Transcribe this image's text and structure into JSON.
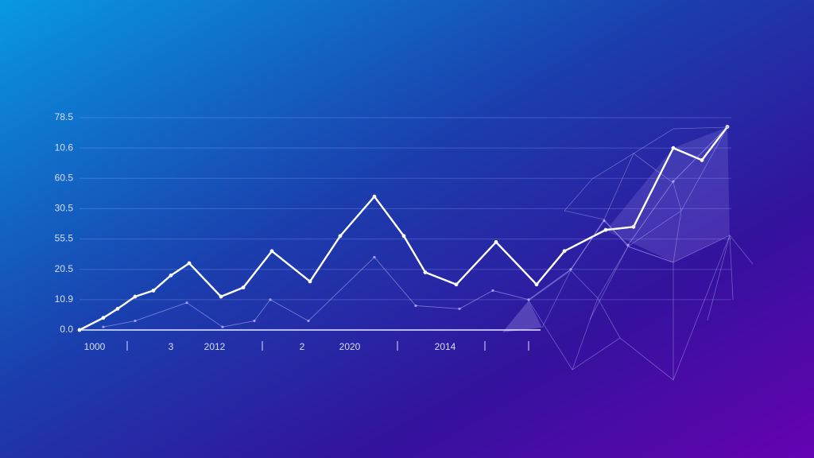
{
  "chart_data": {
    "type": "line",
    "grid": true,
    "ylim": [
      0,
      7
    ],
    "yticks": [
      {
        "value": 0,
        "label": "0.0"
      },
      {
        "value": 1,
        "label": "10.9"
      },
      {
        "value": 2,
        "label": "20.5"
      },
      {
        "value": 3,
        "label": "55.5"
      },
      {
        "value": 4,
        "label": "30.5"
      },
      {
        "value": 5,
        "label": "60.5"
      },
      {
        "value": 6,
        "label": "10.6"
      },
      {
        "value": 7,
        "label": "78.5"
      }
    ],
    "xlim": [
      0,
      82
    ],
    "xticks": [
      {
        "value": 1.9,
        "label": "1000"
      },
      {
        "value": 11.5,
        "label": "3"
      },
      {
        "value": 17,
        "label": "2012"
      },
      {
        "value": 28,
        "label": "2"
      },
      {
        "value": 34,
        "label": "2020"
      },
      {
        "value": 46,
        "label": "2014"
      }
    ],
    "x_minor_ticks": [
      6,
      23,
      40,
      51,
      56.5
    ],
    "series": [
      {
        "color": "#ffffff",
        "x": [
          0,
          3,
          4.8,
          7,
          9.3,
          11.5,
          13.8,
          17.8,
          20.6,
          24.2,
          29,
          32.8,
          37.1,
          40.8,
          43.5,
          47.4,
          52.4,
          57.5,
          61,
          66.2,
          69.7,
          74.7,
          78.3,
          81.5
        ],
        "values": [
          0,
          0.4,
          0.7,
          1.1,
          1.3,
          1.8,
          2.2,
          1.1,
          1.4,
          2.6,
          1.6,
          3.1,
          4.4,
          3.1,
          1.9,
          1.5,
          2.9,
          1.5,
          2.6,
          3.3,
          3.4,
          6.0,
          5.6,
          6.7
        ]
      },
      {
        "color": "#b9b4ff",
        "x": [
          3,
          7,
          13.5,
          18,
          22,
          24,
          28.8,
          37.1,
          42.3,
          47.8,
          52,
          56.5,
          61.8,
          66,
          69,
          74.7,
          81.5
        ],
        "values": [
          0.1,
          0.3,
          0.9,
          0.1,
          0.3,
          1.0,
          0.3,
          2.4,
          0.8,
          0.7,
          1.3,
          1.0,
          2.0,
          3.6,
          2.8,
          4.9,
          6.7
        ]
      }
    ]
  }
}
